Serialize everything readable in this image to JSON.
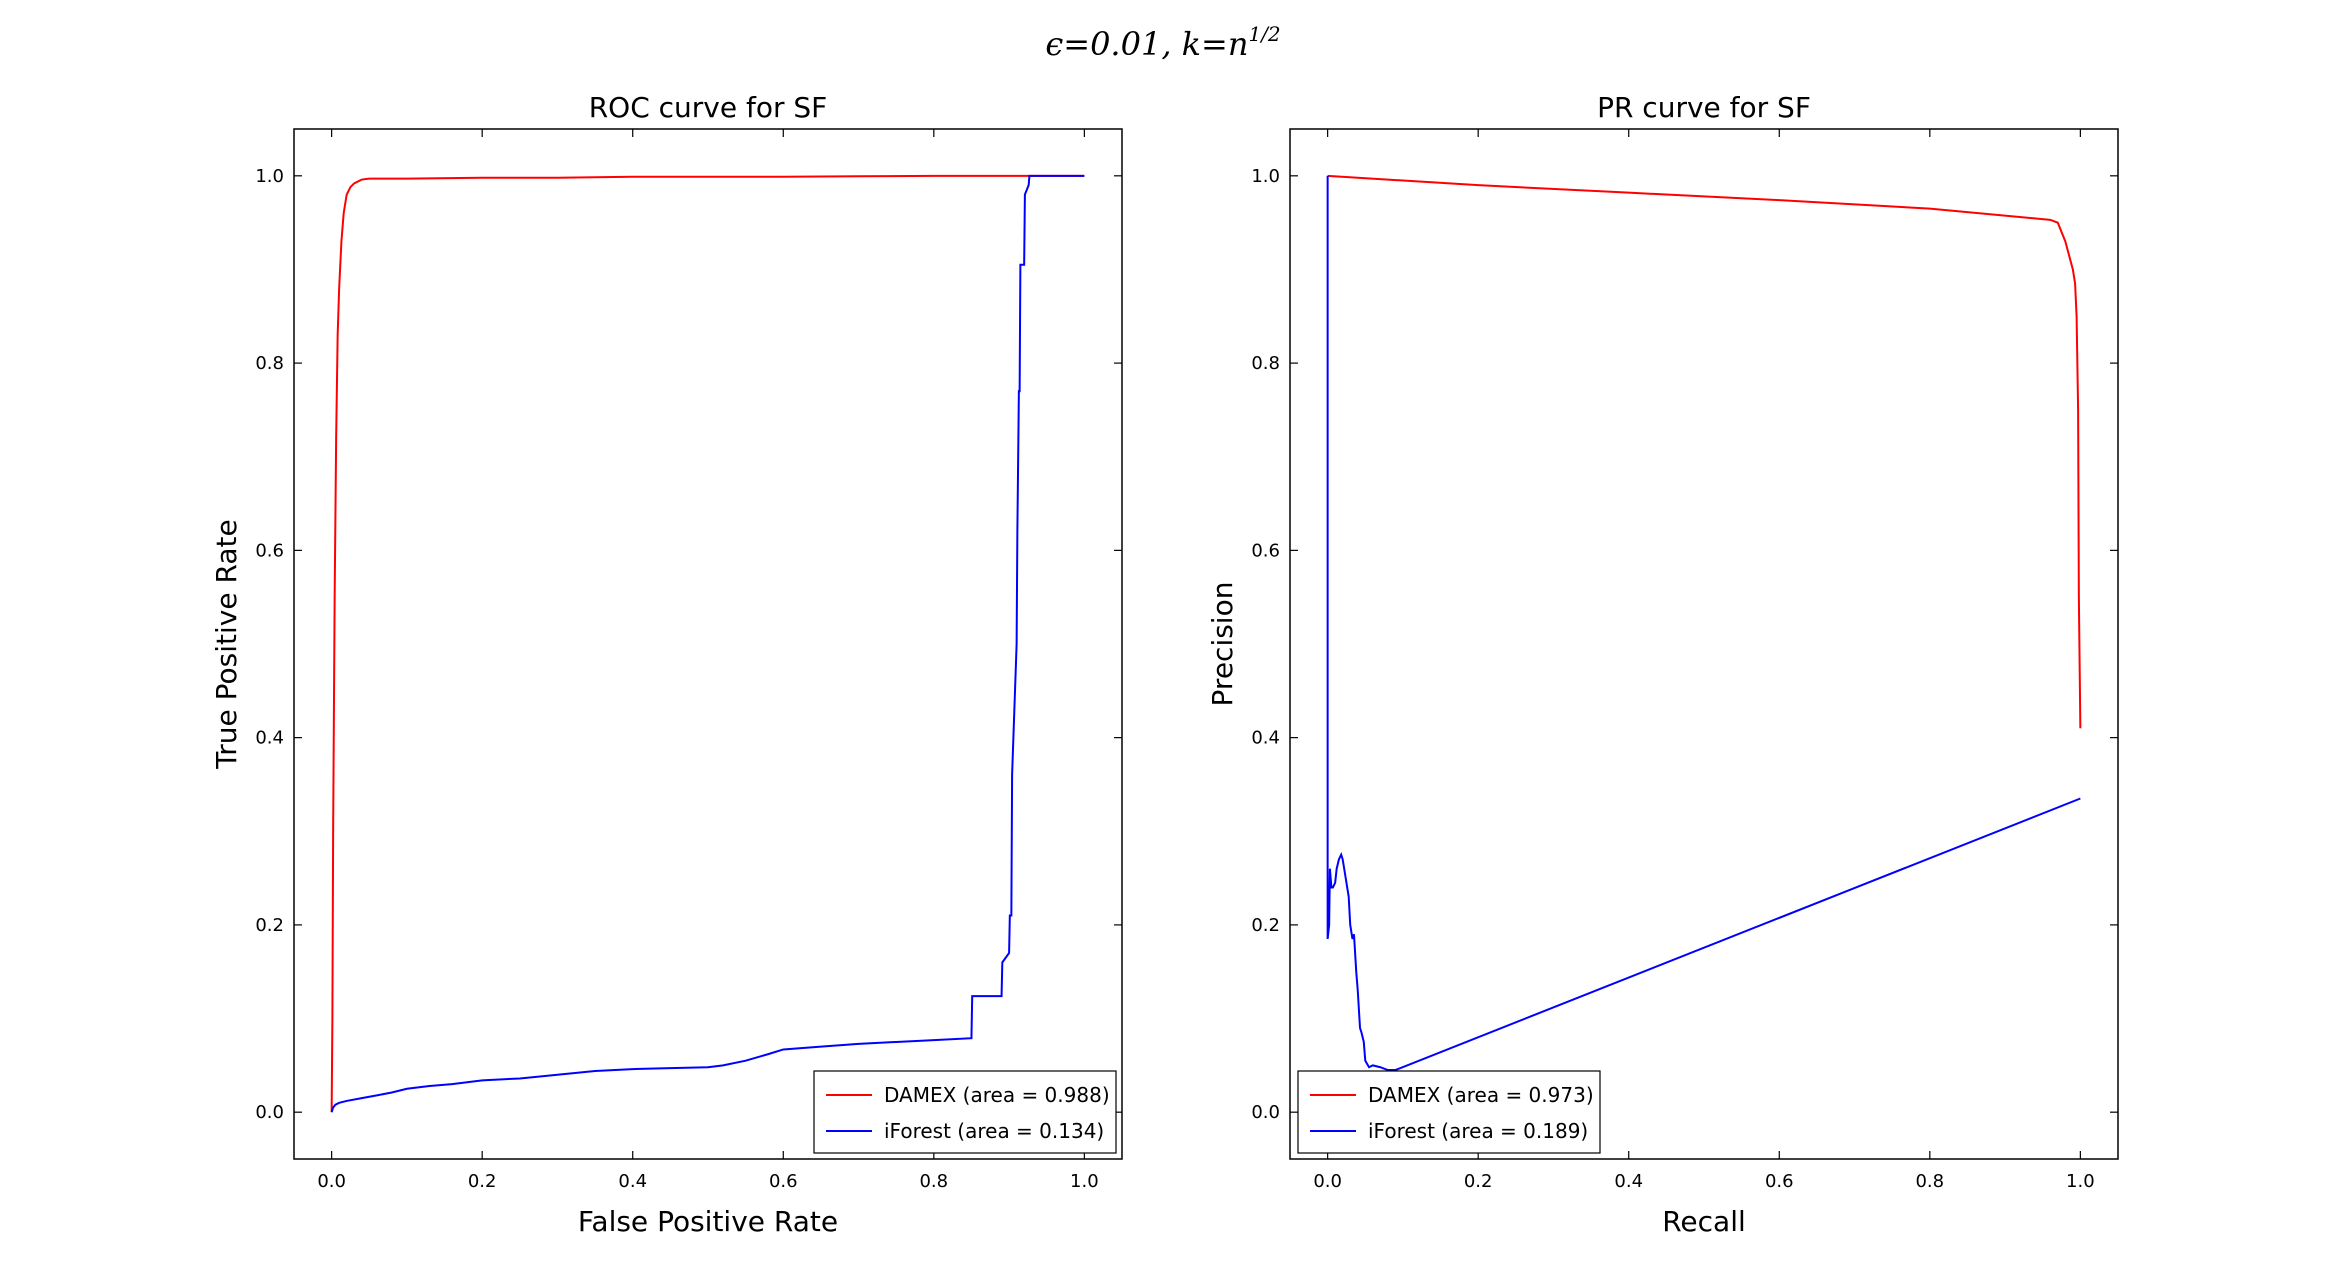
{
  "suptitle": {
    "eps_symbol": "ϵ",
    "eps_value": "=0.01,",
    "k_symbol": "k",
    "k_eq": "=n",
    "k_exponent": "1/2"
  },
  "colors": {
    "damex": "#ff0000",
    "iforest": "#0000ff",
    "axis": "#000000",
    "background": "#ffffff"
  },
  "chart_data": [
    {
      "type": "line",
      "title": "ROC curve for SF",
      "xlabel": "False Positive Rate",
      "ylabel": "True Positive Rate",
      "xlim": [
        -0.05,
        1.05
      ],
      "ylim": [
        -0.05,
        1.05
      ],
      "xticks": [
        0.0,
        0.2,
        0.4,
        0.6,
        0.8,
        1.0
      ],
      "xtick_labels": [
        "0.0",
        "0.2",
        "0.4",
        "0.6",
        "0.8",
        "1.0"
      ],
      "yticks": [
        0.0,
        0.2,
        0.4,
        0.6,
        0.8,
        1.0
      ],
      "ytick_labels": [
        "0.0",
        "0.2",
        "0.4",
        "0.6",
        "0.8",
        "1.0"
      ],
      "grid": false,
      "legend_position": "lower right",
      "series": [
        {
          "name": "DAMEX (area = 0.988)",
          "color": "#ff0000",
          "x": [
            0.0,
            0.001,
            0.002,
            0.004,
            0.006,
            0.008,
            0.01,
            0.013,
            0.016,
            0.02,
            0.025,
            0.03,
            0.04,
            0.05,
            0.1,
            0.2,
            0.3,
            0.4,
            0.5,
            0.6,
            0.7,
            0.8,
            0.9,
            0.95,
            1.0
          ],
          "y": [
            0.0,
            0.1,
            0.3,
            0.55,
            0.72,
            0.83,
            0.88,
            0.93,
            0.96,
            0.98,
            0.988,
            0.992,
            0.996,
            0.997,
            0.997,
            0.998,
            0.998,
            0.999,
            0.999,
            0.999,
            0.9995,
            1.0,
            1.0,
            1.0,
            1.0
          ]
        },
        {
          "name": "iForest (area = 0.134)",
          "color": "#0000ff",
          "x": [
            0.0,
            0.002,
            0.005,
            0.01,
            0.02,
            0.04,
            0.06,
            0.08,
            0.1,
            0.13,
            0.16,
            0.2,
            0.25,
            0.3,
            0.35,
            0.4,
            0.45,
            0.5,
            0.52,
            0.55,
            0.58,
            0.6,
            0.65,
            0.7,
            0.75,
            0.8,
            0.85,
            0.851,
            0.89,
            0.891,
            0.9,
            0.901,
            0.903,
            0.904,
            0.91,
            0.911,
            0.913,
            0.914,
            0.915,
            0.916,
            0.918,
            0.92,
            0.921,
            0.926,
            0.927,
            0.929,
            0.93,
            0.935,
            1.0
          ],
          "y": [
            0.0,
            0.005,
            0.008,
            0.01,
            0.012,
            0.015,
            0.018,
            0.021,
            0.025,
            0.028,
            0.03,
            0.034,
            0.036,
            0.04,
            0.044,
            0.046,
            0.047,
            0.048,
            0.05,
            0.055,
            0.062,
            0.067,
            0.07,
            0.073,
            0.075,
            0.077,
            0.079,
            0.124,
            0.124,
            0.16,
            0.17,
            0.21,
            0.21,
            0.36,
            0.5,
            0.62,
            0.77,
            0.77,
            0.905,
            0.905,
            0.905,
            0.905,
            0.98,
            0.99,
            1.0,
            1.0,
            1.0,
            1.0,
            1.0
          ]
        }
      ]
    },
    {
      "type": "line",
      "title": "PR curve for SF",
      "xlabel": "Recall",
      "ylabel": "Precision",
      "xlim": [
        -0.05,
        1.05
      ],
      "ylim": [
        -0.05,
        1.05
      ],
      "xticks": [
        0.0,
        0.2,
        0.4,
        0.6,
        0.8,
        1.0
      ],
      "xtick_labels": [
        "0.0",
        "0.2",
        "0.4",
        "0.6",
        "0.8",
        "1.0"
      ],
      "yticks": [
        0.0,
        0.2,
        0.4,
        0.6,
        0.8,
        1.0
      ],
      "ytick_labels": [
        "0.0",
        "0.2",
        "0.4",
        "0.6",
        "0.8",
        "1.0"
      ],
      "grid": false,
      "legend_position": "lower left",
      "series": [
        {
          "name": "DAMEX (area = 0.973)",
          "color": "#ff0000",
          "x": [
            0.0,
            0.0,
            0.2,
            0.4,
            0.6,
            0.8,
            0.96,
            0.97,
            0.98,
            0.99,
            0.993,
            0.995,
            0.997,
            0.998,
            1.0
          ],
          "y": [
            1.0,
            1.0,
            0.99,
            0.982,
            0.974,
            0.965,
            0.953,
            0.95,
            0.93,
            0.9,
            0.885,
            0.85,
            0.75,
            0.55,
            0.41
          ]
        },
        {
          "name": "iForest (area = 0.189)",
          "color": "#0000ff",
          "x": [
            0.0,
            0.0,
            0.002,
            0.003,
            0.005,
            0.007,
            0.01,
            0.012,
            0.015,
            0.018,
            0.02,
            0.022,
            0.025,
            0.028,
            0.03,
            0.033,
            0.035,
            0.038,
            0.04,
            0.043,
            0.045,
            0.048,
            0.05,
            0.055,
            0.06,
            0.07,
            0.08,
            0.09,
            1.0
          ],
          "y": [
            1.0,
            0.185,
            0.2,
            0.26,
            0.24,
            0.24,
            0.245,
            0.26,
            0.27,
            0.275,
            0.27,
            0.26,
            0.245,
            0.23,
            0.2,
            0.185,
            0.19,
            0.15,
            0.13,
            0.09,
            0.085,
            0.075,
            0.055,
            0.048,
            0.05,
            0.048,
            0.045,
            0.045,
            0.335
          ]
        }
      ]
    }
  ]
}
